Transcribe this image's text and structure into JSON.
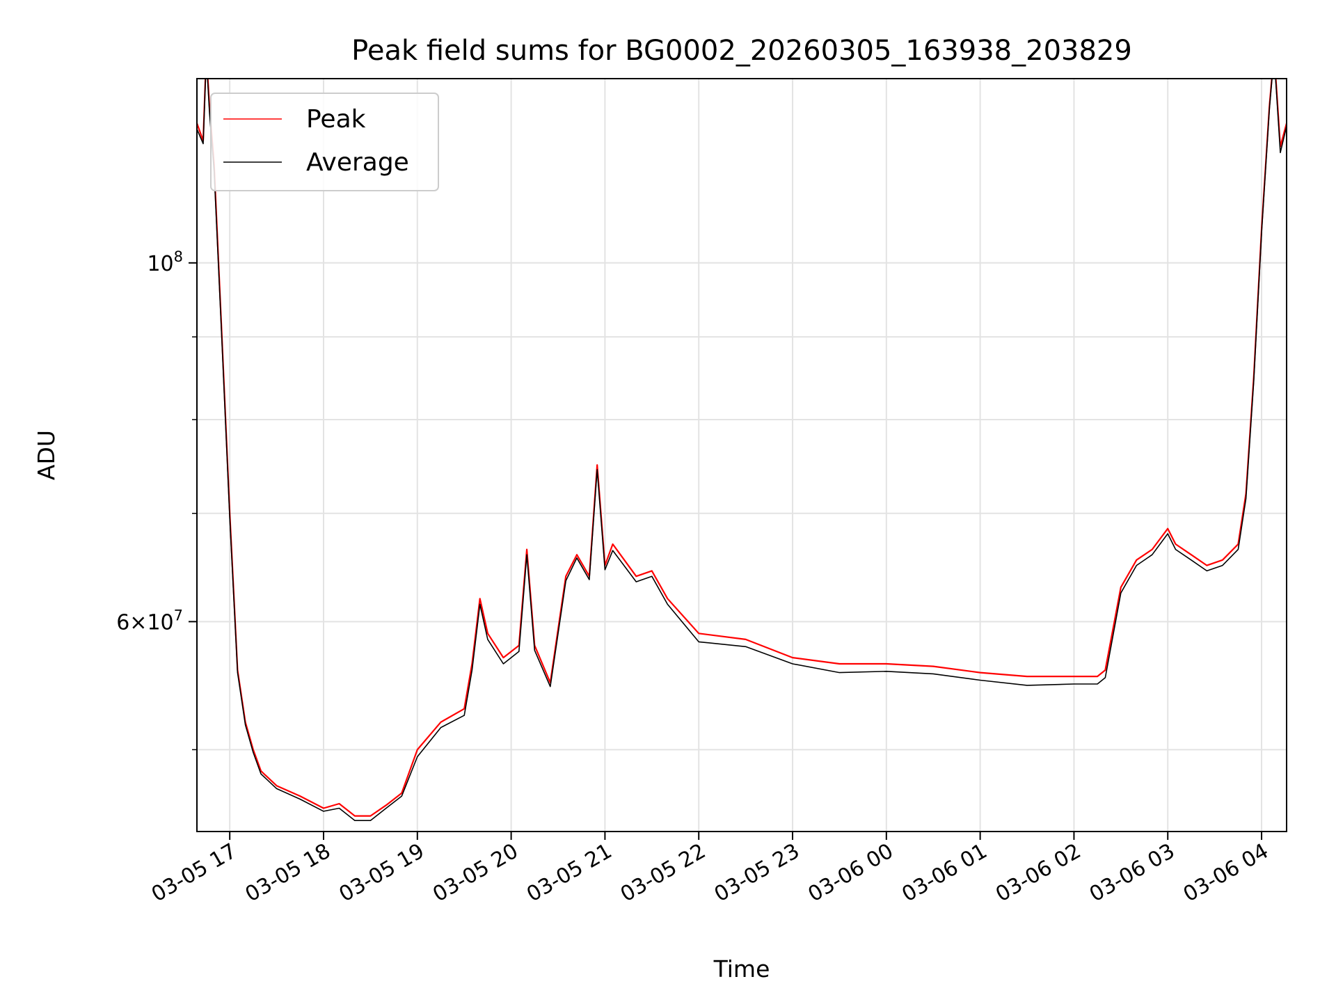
{
  "chart_data": {
    "type": "line",
    "title": "Peak field sums for BG0002_20260305_163938_203829",
    "xlabel": "Time",
    "ylabel": "ADU",
    "yscale": "log",
    "ylim": [
      44500000,
      130000000
    ],
    "xlim": [
      "2026-03-05 16:39",
      "2026-03-06 04:16"
    ],
    "x_ticks": [
      "03-05 17",
      "03-05 18",
      "03-05 19",
      "03-05 20",
      "03-05 21",
      "03-05 22",
      "03-05 23",
      "03-06 00",
      "03-06 01",
      "03-06 02",
      "03-06 03",
      "03-06 04"
    ],
    "y_ticks_major": [
      {
        "value": 100000000,
        "base": "10",
        "exp": "8"
      },
      {
        "value": 60000000,
        "mantissa": "6",
        "base": "10",
        "exp": "7"
      }
    ],
    "y_ticks_minor": [
      50000000,
      70000000,
      80000000,
      90000000
    ],
    "grid": true,
    "legend": "top-left",
    "series": [
      {
        "name": "Peak",
        "color": "#ff0000",
        "x": [
          "2026-03-05 16:39",
          "2026-03-05 16:43",
          "2026-03-05 16:45",
          "2026-03-05 16:47",
          "2026-03-05 16:50",
          "2026-03-05 16:55",
          "2026-03-05 17:00",
          "2026-03-05 17:05",
          "2026-03-05 17:10",
          "2026-03-05 17:15",
          "2026-03-05 17:20",
          "2026-03-05 17:30",
          "2026-03-05 17:45",
          "2026-03-05 18:00",
          "2026-03-05 18:10",
          "2026-03-05 18:20",
          "2026-03-05 18:30",
          "2026-03-05 18:40",
          "2026-03-05 18:50",
          "2026-03-05 19:00",
          "2026-03-05 19:15",
          "2026-03-05 19:30",
          "2026-03-05 19:35",
          "2026-03-05 19:40",
          "2026-03-05 19:45",
          "2026-03-05 19:55",
          "2026-03-05 20:05",
          "2026-03-05 20:10",
          "2026-03-05 20:15",
          "2026-03-05 20:25",
          "2026-03-05 20:35",
          "2026-03-05 20:42",
          "2026-03-05 20:50",
          "2026-03-05 20:55",
          "2026-03-05 21:00",
          "2026-03-05 21:05",
          "2026-03-05 21:20",
          "2026-03-05 21:30",
          "2026-03-05 21:40",
          "2026-03-05 22:00",
          "2026-03-05 22:30",
          "2026-03-05 23:00",
          "2026-03-05 23:30",
          "2026-03-06 00:00",
          "2026-03-06 00:30",
          "2026-03-06 01:00",
          "2026-03-06 01:30",
          "2026-03-06 02:00",
          "2026-03-06 02:15",
          "2026-03-06 02:20",
          "2026-03-06 02:30",
          "2026-03-06 02:40",
          "2026-03-06 02:50",
          "2026-03-06 03:00",
          "2026-03-06 03:05",
          "2026-03-06 03:15",
          "2026-03-06 03:25",
          "2026-03-06 03:35",
          "2026-03-06 03:45",
          "2026-03-06 03:50",
          "2026-03-06 03:55",
          "2026-03-06 04:00",
          "2026-03-06 04:05",
          "2026-03-06 04:08",
          "2026-03-06 04:12",
          "2026-03-06 04:16"
        ],
        "values": [
          122000000,
          119000000,
          135000000,
          125000000,
          115000000,
          90000000,
          70000000,
          56000000,
          52000000,
          50000000,
          48500000,
          47500000,
          46800000,
          46000000,
          46300000,
          45500000,
          45500000,
          46200000,
          47000000,
          50000000,
          52000000,
          53000000,
          56500000,
          62000000,
          59000000,
          57000000,
          58000000,
          66500000,
          58000000,
          55000000,
          64000000,
          66000000,
          64000000,
          75000000,
          65000000,
          67000000,
          64000000,
          64500000,
          62000000,
          59000000,
          58500000,
          57000000,
          56500000,
          56500000,
          56300000,
          55800000,
          55500000,
          55500000,
          55500000,
          56000000,
          63000000,
          65500000,
          66500000,
          68500000,
          67000000,
          66000000,
          65000000,
          65500000,
          67000000,
          72000000,
          85000000,
          105000000,
          125000000,
          135000000,
          118000000,
          122000000
        ]
      },
      {
        "name": "Average",
        "color": "#000000",
        "x": [
          "2026-03-05 16:39",
          "2026-03-05 16:43",
          "2026-03-05 16:45",
          "2026-03-05 16:47",
          "2026-03-05 16:50",
          "2026-03-05 16:55",
          "2026-03-05 17:00",
          "2026-03-05 17:05",
          "2026-03-05 17:10",
          "2026-03-05 17:15",
          "2026-03-05 17:20",
          "2026-03-05 17:30",
          "2026-03-05 17:45",
          "2026-03-05 18:00",
          "2026-03-05 18:10",
          "2026-03-05 18:20",
          "2026-03-05 18:30",
          "2026-03-05 18:40",
          "2026-03-05 18:50",
          "2026-03-05 19:00",
          "2026-03-05 19:15",
          "2026-03-05 19:30",
          "2026-03-05 19:35",
          "2026-03-05 19:40",
          "2026-03-05 19:45",
          "2026-03-05 19:55",
          "2026-03-05 20:05",
          "2026-03-05 20:10",
          "2026-03-05 20:15",
          "2026-03-05 20:25",
          "2026-03-05 20:35",
          "2026-03-05 20:42",
          "2026-03-05 20:50",
          "2026-03-05 20:55",
          "2026-03-05 21:00",
          "2026-03-05 21:05",
          "2026-03-05 21:20",
          "2026-03-05 21:30",
          "2026-03-05 21:40",
          "2026-03-05 22:00",
          "2026-03-05 22:30",
          "2026-03-05 23:00",
          "2026-03-05 23:30",
          "2026-03-06 00:00",
          "2026-03-06 00:30",
          "2026-03-06 01:00",
          "2026-03-06 01:30",
          "2026-03-06 02:00",
          "2026-03-06 02:15",
          "2026-03-06 02:20",
          "2026-03-06 02:30",
          "2026-03-06 02:40",
          "2026-03-06 02:50",
          "2026-03-06 03:00",
          "2026-03-06 03:05",
          "2026-03-06 03:15",
          "2026-03-06 03:25",
          "2026-03-06 03:35",
          "2026-03-06 03:45",
          "2026-03-06 03:50",
          "2026-03-06 03:55",
          "2026-03-06 04:00",
          "2026-03-06 04:05",
          "2026-03-06 04:08",
          "2026-03-06 04:12",
          "2026-03-06 04:16"
        ],
        "values": [
          121000000,
          118500000,
          134000000,
          124000000,
          114000000,
          89500000,
          69500000,
          55800000,
          51800000,
          49800000,
          48300000,
          47300000,
          46600000,
          45800000,
          46000000,
          45200000,
          45200000,
          46000000,
          46800000,
          49500000,
          51600000,
          52500000,
          56000000,
          61500000,
          58500000,
          56500000,
          57500000,
          66000000,
          57600000,
          54700000,
          63600000,
          65700000,
          63700000,
          74500000,
          64600000,
          66400000,
          63500000,
          64000000,
          61500000,
          58300000,
          57900000,
          56500000,
          55800000,
          55900000,
          55700000,
          55200000,
          54800000,
          54900000,
          54900000,
          55400000,
          62500000,
          65000000,
          66000000,
          68000000,
          66500000,
          65500000,
          64500000,
          65000000,
          66500000,
          71500000,
          84500000,
          104500000,
          124500000,
          134500000,
          117000000,
          121500000
        ]
      }
    ]
  }
}
